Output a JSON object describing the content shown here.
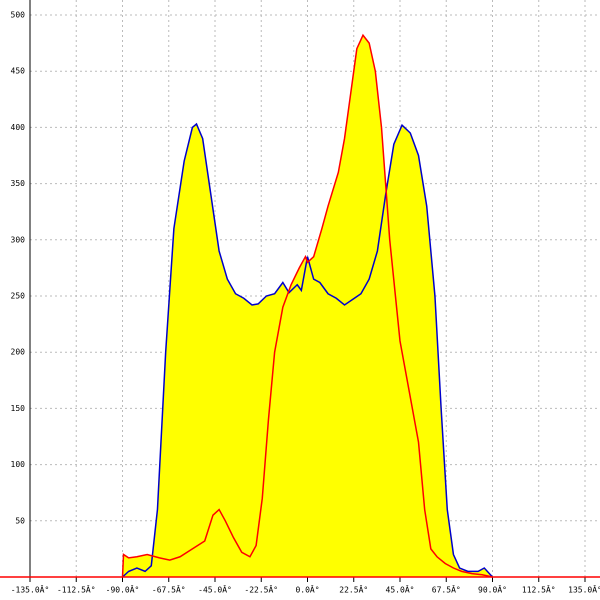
{
  "chart_data": {
    "type": "area",
    "xlim": [
      -135,
      135
    ],
    "ylim": [
      0,
      500
    ],
    "xticks": [
      {
        "value": -135,
        "label": "-135.0Â°"
      },
      {
        "value": -112.5,
        "label": "-112.5Â°"
      },
      {
        "value": -90,
        "label": "-90.0Â°"
      },
      {
        "value": -67.5,
        "label": "-67.5Â°"
      },
      {
        "value": -45,
        "label": "-45.0Â°"
      },
      {
        "value": -22.5,
        "label": "-22.5Â°"
      },
      {
        "value": 0,
        "label": "0.0Â°"
      },
      {
        "value": 22.5,
        "label": "22.5Â°"
      },
      {
        "value": 45,
        "label": "45.0Â°"
      },
      {
        "value": 67.5,
        "label": "67.5Â°"
      },
      {
        "value": 90,
        "label": "90.0Â°"
      },
      {
        "value": 112.5,
        "label": "112.5Â°"
      },
      {
        "value": 135,
        "label": "135.0Â°"
      }
    ],
    "yticks": [
      50,
      100,
      150,
      200,
      250,
      300,
      350,
      400,
      450,
      500
    ],
    "grid": true,
    "fill_color": "#ffff00",
    "axis_color": "#ff0000",
    "series": [
      {
        "color": "#0000cc",
        "x": [
          -90,
          -87,
          -83,
          -79,
          -76,
          -73,
          -69,
          -65,
          -60,
          -56,
          -54,
          -51,
          -47,
          -43,
          -39,
          -35,
          -31,
          -27,
          -24,
          -20,
          -16,
          -12,
          -9,
          -5,
          -3,
          0,
          3,
          6,
          10,
          14,
          18,
          22,
          26,
          30,
          34,
          38,
          42,
          46,
          50,
          54,
          58,
          62,
          65,
          68,
          71,
          74,
          78,
          83,
          86,
          90
        ],
        "values": [
          0,
          5,
          8,
          5,
          10,
          60,
          200,
          310,
          370,
          400,
          403,
          390,
          340,
          290,
          265,
          252,
          248,
          242,
          243,
          250,
          252,
          262,
          253,
          260,
          255,
          285,
          265,
          262,
          252,
          248,
          242,
          247,
          252,
          265,
          290,
          340,
          385,
          402,
          395,
          375,
          330,
          250,
          150,
          60,
          20,
          8,
          5,
          5,
          8,
          0
        ]
      },
      {
        "color": "#ff0000",
        "x": [
          -90,
          -89.5,
          -87,
          -83,
          -78,
          -72,
          -67,
          -62,
          -56,
          -50,
          -46,
          -43,
          -40,
          -36,
          -32,
          -28,
          -25,
          -22,
          -19,
          -16,
          -12,
          -8,
          -4,
          -1,
          0,
          3,
          7,
          10,
          15,
          18,
          21,
          24,
          27,
          30,
          33,
          36,
          40,
          45,
          50,
          54,
          57,
          60,
          63,
          67,
          71,
          75,
          80,
          85,
          90
        ],
        "values": [
          0,
          20,
          17,
          18,
          20,
          17,
          15,
          18,
          25,
          32,
          55,
          60,
          50,
          35,
          22,
          18,
          28,
          70,
          140,
          200,
          240,
          260,
          275,
          285,
          280,
          285,
          310,
          330,
          360,
          390,
          430,
          470,
          482,
          475,
          450,
          400,
          300,
          210,
          160,
          120,
          60,
          25,
          18,
          12,
          8,
          5,
          3,
          2,
          0
        ]
      }
    ]
  }
}
